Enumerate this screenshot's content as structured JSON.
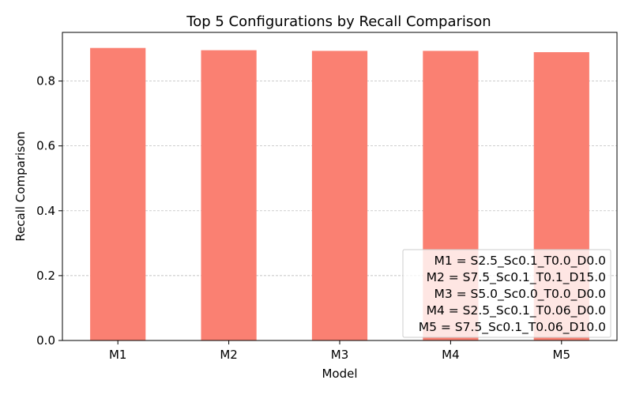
{
  "chart_data": {
    "type": "bar",
    "title": "Top 5 Configurations by Recall Comparison",
    "xlabel": "Model",
    "ylabel": "Recall Comparison",
    "categories": [
      "M1",
      "M2",
      "M3",
      "M4",
      "M5"
    ],
    "values": [
      0.902,
      0.895,
      0.893,
      0.893,
      0.889
    ],
    "ylim": [
      0,
      0.95
    ],
    "yticks": [
      "0.0",
      "0.2",
      "0.4",
      "0.6",
      "0.8"
    ],
    "bar_color": "#fa8072",
    "grid": "y-dashed",
    "legend_position": "bottom-right",
    "legend": [
      "M1 = S2.5_Sc0.1_T0.0_D0.0",
      "M2 = S7.5_Sc0.1_T0.1_D15.0",
      "M3 = S5.0_Sc0.0_T0.0_D0.0",
      "M4 = S2.5_Sc0.1_T0.06_D0.0",
      "M5 = S7.5_Sc0.1_T0.06_D10.0"
    ]
  }
}
